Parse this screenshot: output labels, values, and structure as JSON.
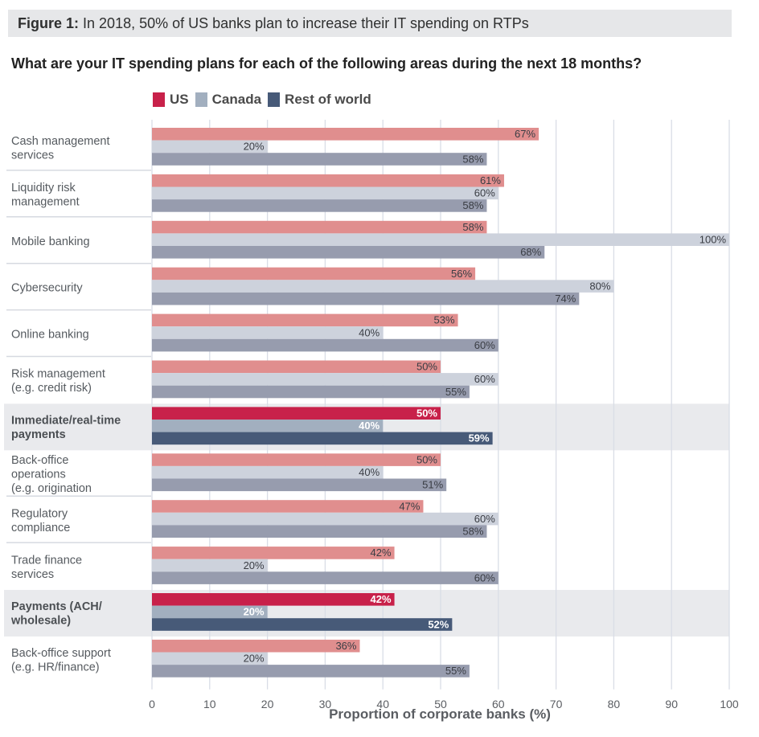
{
  "figure": {
    "label": "Figure 1:",
    "caption": "In 2018, 50% of US banks plan to increase their IT spending on RTPs"
  },
  "question": "What are your IT spending plans for each of the following areas during the next 18 months?",
  "colors": {
    "us": "#e08e8e",
    "canada": "#cdd2dc",
    "row": "#979cae",
    "us_highlight": "#c8214a",
    "canada_highlight": "#a2afbf",
    "row_highlight": "#475a78",
    "highlight_band": "#e9eaed",
    "grid": "#d9dde6",
    "separator": "#d6d9e0"
  },
  "chart_data": {
    "type": "bar",
    "orientation": "horizontal",
    "title": "What are your IT spending plans for each of the following areas during the next 18 months?",
    "xlabel": "Proportion of corporate banks (%)",
    "ylabel": "",
    "xlim": [
      0,
      100
    ],
    "xticks": [
      0,
      10,
      20,
      30,
      40,
      50,
      60,
      70,
      80,
      90,
      100
    ],
    "grid": true,
    "legend_position": "top",
    "legend": [
      "US",
      "Canada",
      "Rest of world"
    ],
    "categories": [
      {
        "label": [
          "Cash management",
          "services"
        ],
        "highlight": false
      },
      {
        "label": [
          "Liquidity risk",
          "management"
        ],
        "highlight": false
      },
      {
        "label": [
          "Mobile banking"
        ],
        "highlight": false
      },
      {
        "label": [
          "Cybersecurity"
        ],
        "highlight": false
      },
      {
        "label": [
          "Online banking"
        ],
        "highlight": false
      },
      {
        "label": [
          "Risk management",
          "(e.g. credit risk)"
        ],
        "highlight": false
      },
      {
        "label": [
          "Immediate/real-time",
          "payments"
        ],
        "highlight": true
      },
      {
        "label": [
          "Back-office",
          "operations",
          "(e.g. origination"
        ],
        "highlight": false
      },
      {
        "label": [
          "Regulatory",
          "compliance"
        ],
        "highlight": false
      },
      {
        "label": [
          "Trade finance",
          "services"
        ],
        "highlight": false
      },
      {
        "label": [
          "Payments (ACH/",
          "wholesale)"
        ],
        "highlight": true
      },
      {
        "label": [
          "Back-office support",
          "(e.g. HR/finance)"
        ],
        "highlight": false
      }
    ],
    "series": [
      {
        "name": "US",
        "values": [
          67,
          61,
          58,
          56,
          53,
          50,
          50,
          50,
          47,
          42,
          42,
          36
        ]
      },
      {
        "name": "Canada",
        "values": [
          20,
          60,
          100,
          80,
          40,
          60,
          40,
          40,
          60,
          20,
          20,
          20
        ]
      },
      {
        "name": "Rest of world",
        "values": [
          58,
          58,
          68,
          74,
          60,
          55,
          59,
          51,
          58,
          60,
          52,
          55
        ]
      }
    ],
    "value_suffix": "%"
  }
}
